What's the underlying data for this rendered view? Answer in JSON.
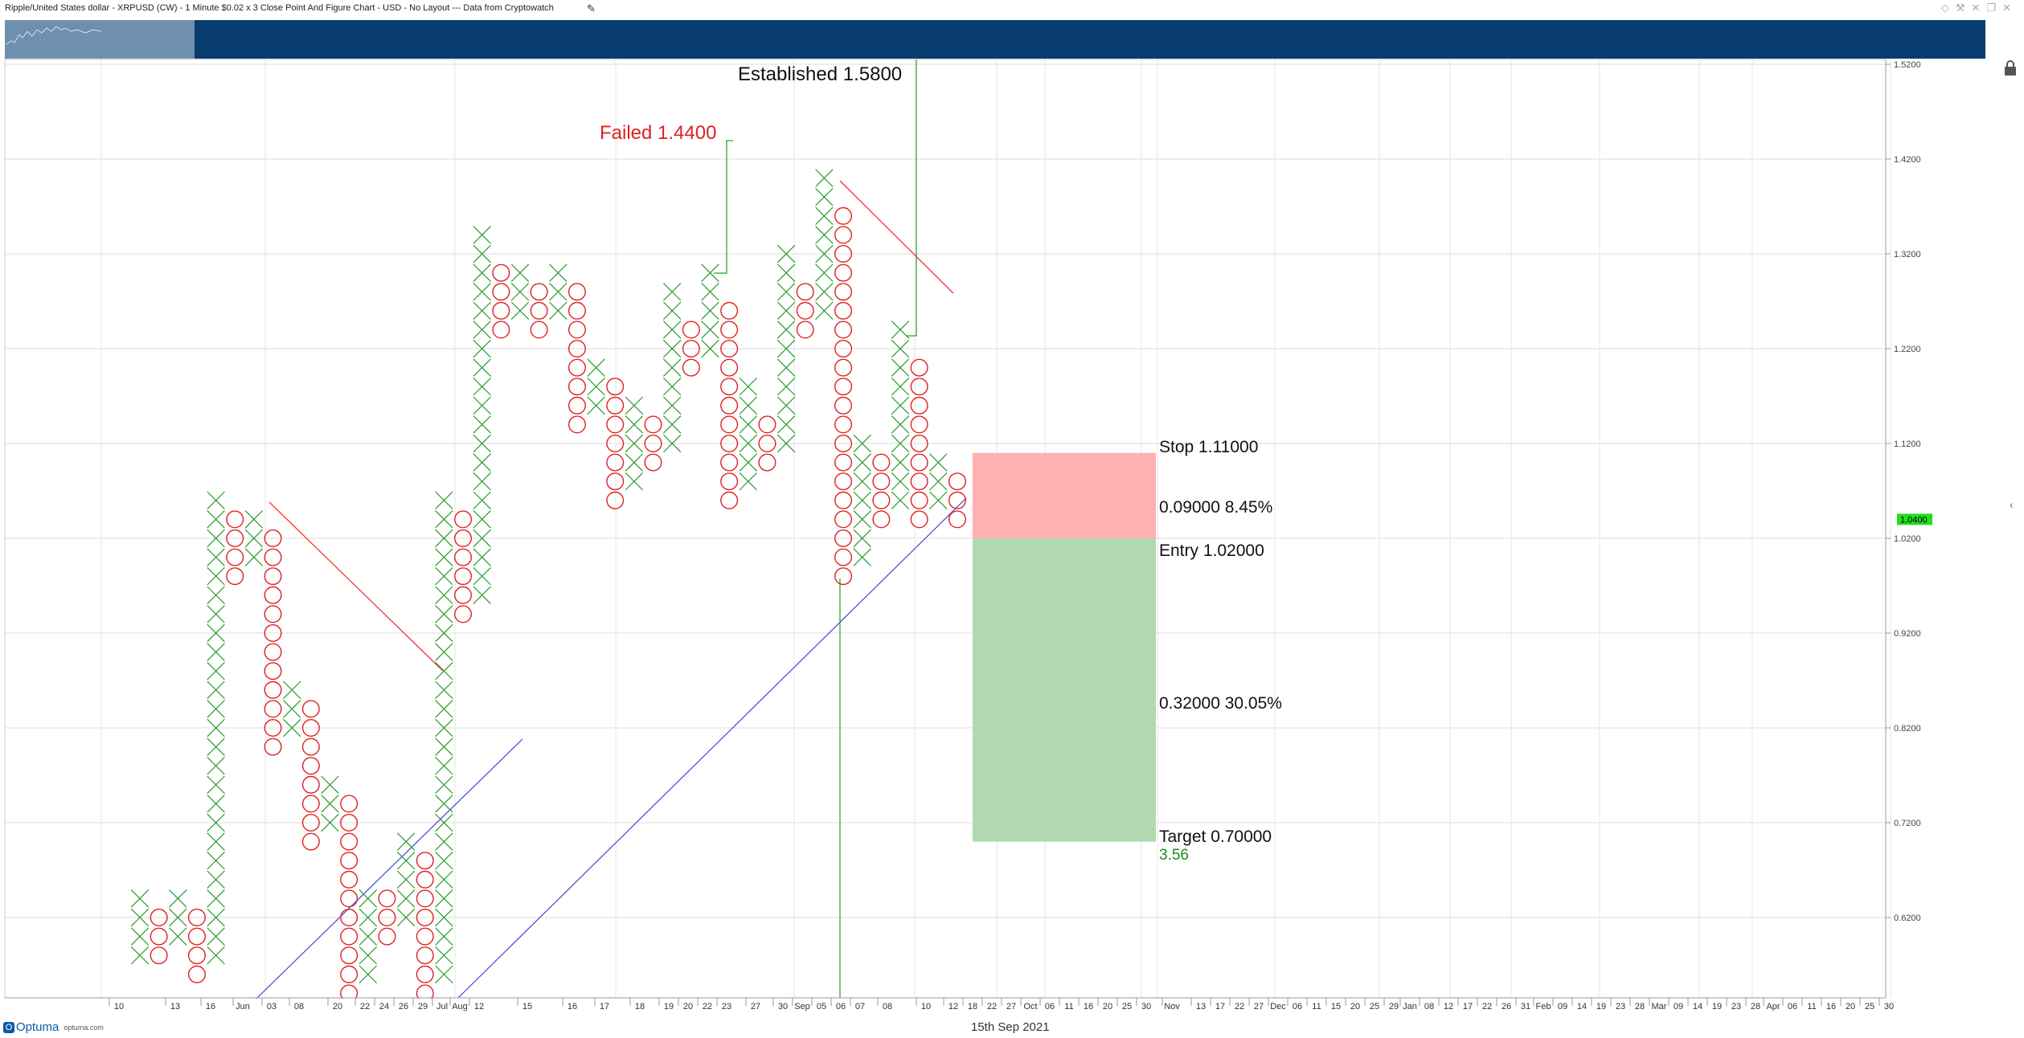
{
  "window": {
    "title": "Ripple/United States dollar - XRPUSD (CW) - 1 Minute $0.02 x 3 Close Point And Figure Chart - USD - No Layout --- Data from Cryptowatch",
    "edit_icon": "pencil-icon",
    "buttons": [
      "diamond-icon",
      "wrench-icon",
      "close-x-icon",
      "restore-icon",
      "close-icon"
    ]
  },
  "footer": {
    "brand": "Optuma",
    "brand_url_text": "optuma.com",
    "date": "15th Sep 2021"
  },
  "colors": {
    "x_color": "#2a9a2a",
    "o_color": "#e02020",
    "navigator": "#083c6e",
    "current_price_bg": "#22dd22",
    "stop_zone": "#ffb0b0",
    "target_zone": "#b2d8b0",
    "trendline_down": "#ff3030",
    "trendline_up": "#4040dd",
    "breakout_line": "#22a022"
  },
  "chart_data": {
    "type": "point-and-figure",
    "box_size": 0.02,
    "reversal": 3,
    "ylim": [
      0.55,
      1.53
    ],
    "y_ticks": [
      "1.5200",
      "1.4200",
      "1.3200",
      "1.2200",
      "1.1200",
      "1.0200",
      "0.9200",
      "0.8200",
      "0.7200",
      "0.6200"
    ],
    "y_tick_values": [
      1.52,
      1.42,
      1.32,
      1.22,
      1.12,
      1.02,
      0.92,
      0.82,
      0.72,
      0.62
    ],
    "current_price_label": "1.0400",
    "current_price": 1.04,
    "x_labels": [
      "10",
      "13",
      "16",
      "Jun",
      "03",
      "08",
      "20",
      "22",
      "24",
      "26",
      "29",
      "Jul",
      "Aug",
      "12",
      "15",
      "16",
      "17",
      "18",
      "19",
      "20",
      "22",
      "23",
      "27",
      "30",
      "Sep",
      "05",
      "06",
      "07",
      "08",
      "10",
      "12",
      "18",
      "22",
      "27",
      "Oct",
      "06",
      "11",
      "16",
      "20",
      "25",
      "30",
      "Nov",
      "13",
      "17",
      "22",
      "27",
      "Dec",
      "06",
      "11",
      "15",
      "20",
      "25",
      "29",
      "Jan",
      "08",
      "12",
      "17",
      "22",
      "26",
      "31",
      "Feb",
      "09",
      "14",
      "19",
      "23",
      "28",
      "Mar",
      "09",
      "14",
      "19",
      "23",
      "28",
      "Apr",
      "06",
      "11",
      "16",
      "20",
      "25",
      "30"
    ],
    "columns": [
      {
        "type": "X",
        "low": 0.58,
        "high": 0.64
      },
      {
        "type": "O",
        "low": 0.58,
        "high": 0.62
      },
      {
        "type": "X",
        "low": 0.6,
        "high": 0.64
      },
      {
        "type": "O",
        "low": 0.56,
        "high": 0.62
      },
      {
        "type": "X",
        "low": 0.58,
        "high": 1.06
      },
      {
        "type": "O",
        "low": 0.98,
        "high": 1.04
      },
      {
        "type": "X",
        "low": 1.0,
        "high": 1.04
      },
      {
        "type": "O",
        "low": 0.8,
        "high": 1.02
      },
      {
        "type": "X",
        "low": 0.82,
        "high": 0.86
      },
      {
        "type": "O",
        "low": 0.7,
        "high": 0.84
      },
      {
        "type": "X",
        "low": 0.72,
        "high": 0.76
      },
      {
        "type": "O",
        "low": 0.54,
        "high": 0.74
      },
      {
        "type": "X",
        "low": 0.56,
        "high": 0.64
      },
      {
        "type": "O",
        "low": 0.6,
        "high": 0.64
      },
      {
        "type": "X",
        "low": 0.62,
        "high": 0.7
      },
      {
        "type": "O",
        "low": 0.54,
        "high": 0.68
      },
      {
        "type": "X",
        "low": 0.56,
        "high": 1.06
      },
      {
        "type": "O",
        "low": 0.94,
        "high": 1.04
      },
      {
        "type": "X",
        "low": 0.96,
        "high": 1.34
      },
      {
        "type": "O",
        "low": 1.24,
        "high": 1.3
      },
      {
        "type": "X",
        "low": 1.26,
        "high": 1.3
      },
      {
        "type": "O",
        "low": 1.24,
        "high": 1.28
      },
      {
        "type": "X",
        "low": 1.26,
        "high": 1.3
      },
      {
        "type": "O",
        "low": 1.14,
        "high": 1.28
      },
      {
        "type": "X",
        "low": 1.16,
        "high": 1.2
      },
      {
        "type": "O",
        "low": 1.06,
        "high": 1.18
      },
      {
        "type": "X",
        "low": 1.08,
        "high": 1.16
      },
      {
        "type": "O",
        "low": 1.1,
        "high": 1.14
      },
      {
        "type": "X",
        "low": 1.12,
        "high": 1.28
      },
      {
        "type": "O",
        "low": 1.2,
        "high": 1.24
      },
      {
        "type": "X",
        "low": 1.22,
        "high": 1.3
      },
      {
        "type": "O",
        "low": 1.06,
        "high": 1.26
      },
      {
        "type": "X",
        "low": 1.08,
        "high": 1.18
      },
      {
        "type": "O",
        "low": 1.1,
        "high": 1.14
      },
      {
        "type": "X",
        "low": 1.12,
        "high": 1.32
      },
      {
        "type": "O",
        "low": 1.24,
        "high": 1.28
      },
      {
        "type": "X",
        "low": 1.26,
        "high": 1.4
      },
      {
        "type": "O",
        "low": 0.98,
        "high": 1.36
      },
      {
        "type": "X",
        "low": 1.0,
        "high": 1.12
      },
      {
        "type": "O",
        "low": 1.04,
        "high": 1.1
      },
      {
        "type": "X",
        "low": 1.06,
        "high": 1.24
      },
      {
        "type": "O",
        "low": 1.04,
        "high": 1.2
      },
      {
        "type": "X",
        "low": 1.06,
        "high": 1.1
      },
      {
        "type": "O",
        "low": 1.04,
        "high": 1.08
      }
    ],
    "annotations": [
      {
        "name": "failed-label",
        "text": "Failed 1.4400",
        "price": 1.44,
        "color": "#e02020"
      },
      {
        "name": "established-label",
        "text": "Established 1.5800",
        "price": 1.58,
        "color": "#111111"
      }
    ],
    "trade": {
      "stop_label": "Stop   1.11000",
      "stop": 1.11,
      "risk_label": "0.09000   8.45%",
      "entry_label": "Entry   1.02000",
      "entry": 1.02,
      "reward_label": "0.32000   30.05%",
      "target_label": "Target   0.70000",
      "target": 0.7,
      "ratio_label": "3.56"
    }
  }
}
